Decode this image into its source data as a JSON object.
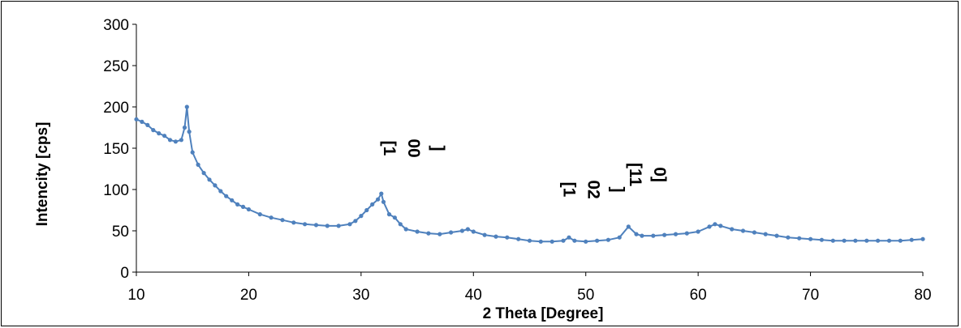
{
  "chart_data": {
    "type": "scatter",
    "title": "",
    "xlabel": "2 Theta [Degree]",
    "ylabel": "Intencity [cps]",
    "xlim": [
      10,
      80
    ],
    "ylim": [
      0,
      300
    ],
    "xticks": [
      10,
      20,
      30,
      40,
      50,
      60,
      70,
      80
    ],
    "yticks": [
      0,
      50,
      100,
      150,
      200,
      250,
      300
    ],
    "grid": false,
    "legend": "none",
    "series_color": "#4F81BD",
    "series": [
      {
        "name": "",
        "x": [
          10,
          10.5,
          11,
          11.5,
          12,
          12.5,
          13,
          13.5,
          14,
          14.3,
          14.5,
          14.7,
          15,
          15.5,
          16,
          16.5,
          17,
          17.5,
          18,
          18.5,
          19,
          19.5,
          20,
          21,
          22,
          23,
          24,
          25,
          26,
          27,
          28,
          29,
          29.5,
          30,
          30.5,
          31,
          31.5,
          31.8,
          32,
          32.5,
          33,
          33.5,
          34,
          35,
          36,
          37,
          38,
          39,
          39.5,
          40,
          41,
          42,
          43,
          44,
          45,
          46,
          47,
          48,
          48.5,
          49,
          50,
          51,
          52,
          53,
          53.8,
          54.5,
          55,
          56,
          57,
          58,
          59,
          60,
          61,
          61.5,
          62,
          63,
          64,
          65,
          66,
          67,
          68,
          69,
          70,
          71,
          72,
          73,
          74,
          75,
          76,
          77,
          78,
          79,
          80
        ],
        "y": [
          185,
          182,
          178,
          172,
          168,
          165,
          160,
          158,
          160,
          175,
          200,
          170,
          145,
          130,
          120,
          112,
          105,
          98,
          92,
          87,
          82,
          79,
          76,
          70,
          66,
          63,
          60,
          58,
          57,
          56,
          56,
          58,
          62,
          68,
          75,
          82,
          88,
          95,
          85,
          70,
          66,
          58,
          52,
          49,
          47,
          46,
          48,
          50,
          52,
          49,
          45,
          43,
          42,
          40,
          38,
          37,
          37,
          38,
          42,
          38,
          37,
          38,
          39,
          42,
          55,
          46,
          44,
          44,
          45,
          46,
          47,
          49,
          55,
          58,
          56,
          52,
          50,
          48,
          46,
          44,
          42,
          41,
          40,
          39,
          38,
          38,
          38,
          38,
          38,
          38,
          38,
          39,
          40
        ]
      }
    ],
    "annotations": [
      {
        "lines": [
          "[1",
          "00",
          "]"
        ],
        "x": 34.2,
        "y": 150
      },
      {
        "lines": [
          "[1",
          "02",
          "]"
        ],
        "x": 50.2,
        "y": 100
      },
      {
        "lines": [
          "[11",
          "0]"
        ],
        "x": 55.0,
        "y": 118
      }
    ]
  }
}
